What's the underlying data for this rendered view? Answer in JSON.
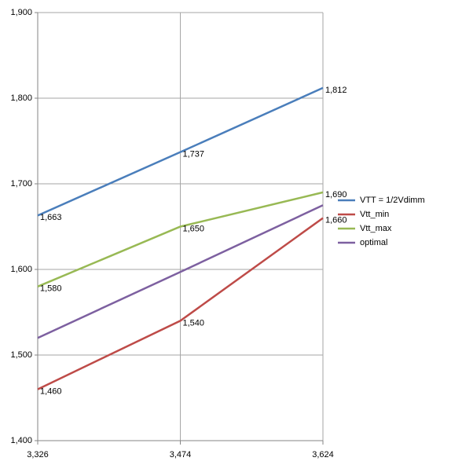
{
  "chart_data": {
    "type": "line",
    "categories": [
      "3,326",
      "3,474",
      "3,624"
    ],
    "series": [
      {
        "name": "VTT = 1/2Vdimm",
        "color": "#4a7ebb",
        "values": [
          1663,
          1737,
          1812
        ],
        "value_labels": [
          "1,663",
          "1,737",
          "1,812"
        ]
      },
      {
        "name": "Vtt_min",
        "color": "#be4b48",
        "values": [
          1460,
          1540,
          1660
        ],
        "value_labels": [
          "1,460",
          "1,540",
          "1,660"
        ]
      },
      {
        "name": "Vtt_max",
        "color": "#98b954",
        "values": [
          1580,
          1650,
          1690
        ],
        "value_labels": [
          "1,580",
          "1,650",
          "1,690"
        ]
      },
      {
        "name": "optimal",
        "color": "#7d60a0",
        "values": [
          1520,
          1597,
          1675
        ]
      }
    ],
    "ylim": [
      1400,
      1900
    ],
    "yticks": [
      {
        "value": 1400,
        "label": "1,400"
      },
      {
        "value": 1500,
        "label": "1,500"
      },
      {
        "value": 1600,
        "label": "1,600"
      },
      {
        "value": 1700,
        "label": "1,700"
      },
      {
        "value": 1800,
        "label": "1,800"
      },
      {
        "value": 1900,
        "label": "1,900"
      }
    ],
    "grid": true,
    "legend": "right"
  }
}
